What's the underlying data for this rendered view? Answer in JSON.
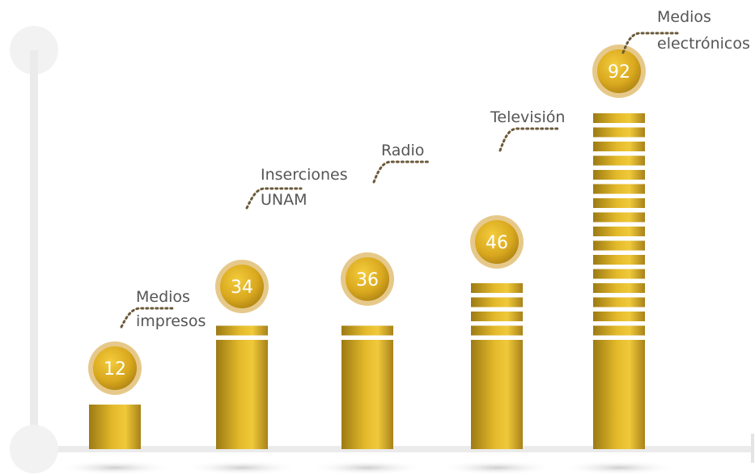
{
  "chart_data": {
    "type": "bar",
    "title": "",
    "xlabel": "",
    "ylabel": "",
    "ylim": [
      0,
      100
    ],
    "grid": false,
    "legend": "none",
    "series": [
      {
        "values": [
          12,
          34,
          36,
          46,
          92
        ],
        "labels": [
          "12",
          "34",
          "36",
          "46",
          "92"
        ],
        "categories": [
          [
            "Medios",
            "impresos"
          ],
          [
            "Inserciones",
            "UNAM"
          ],
          [
            "Radio"
          ],
          [
            "Televisión"
          ],
          [
            "Medios",
            "electrónicos"
          ]
        ]
      }
    ]
  },
  "colors": {
    "bar_gold_light": "#E3B92A",
    "bar_gold_dark": "#9C7A14",
    "coin_ring": "#E6C98A",
    "label_text": "#555555",
    "leader_line": "#6B5A3A",
    "axis": "#EBEBEB"
  }
}
